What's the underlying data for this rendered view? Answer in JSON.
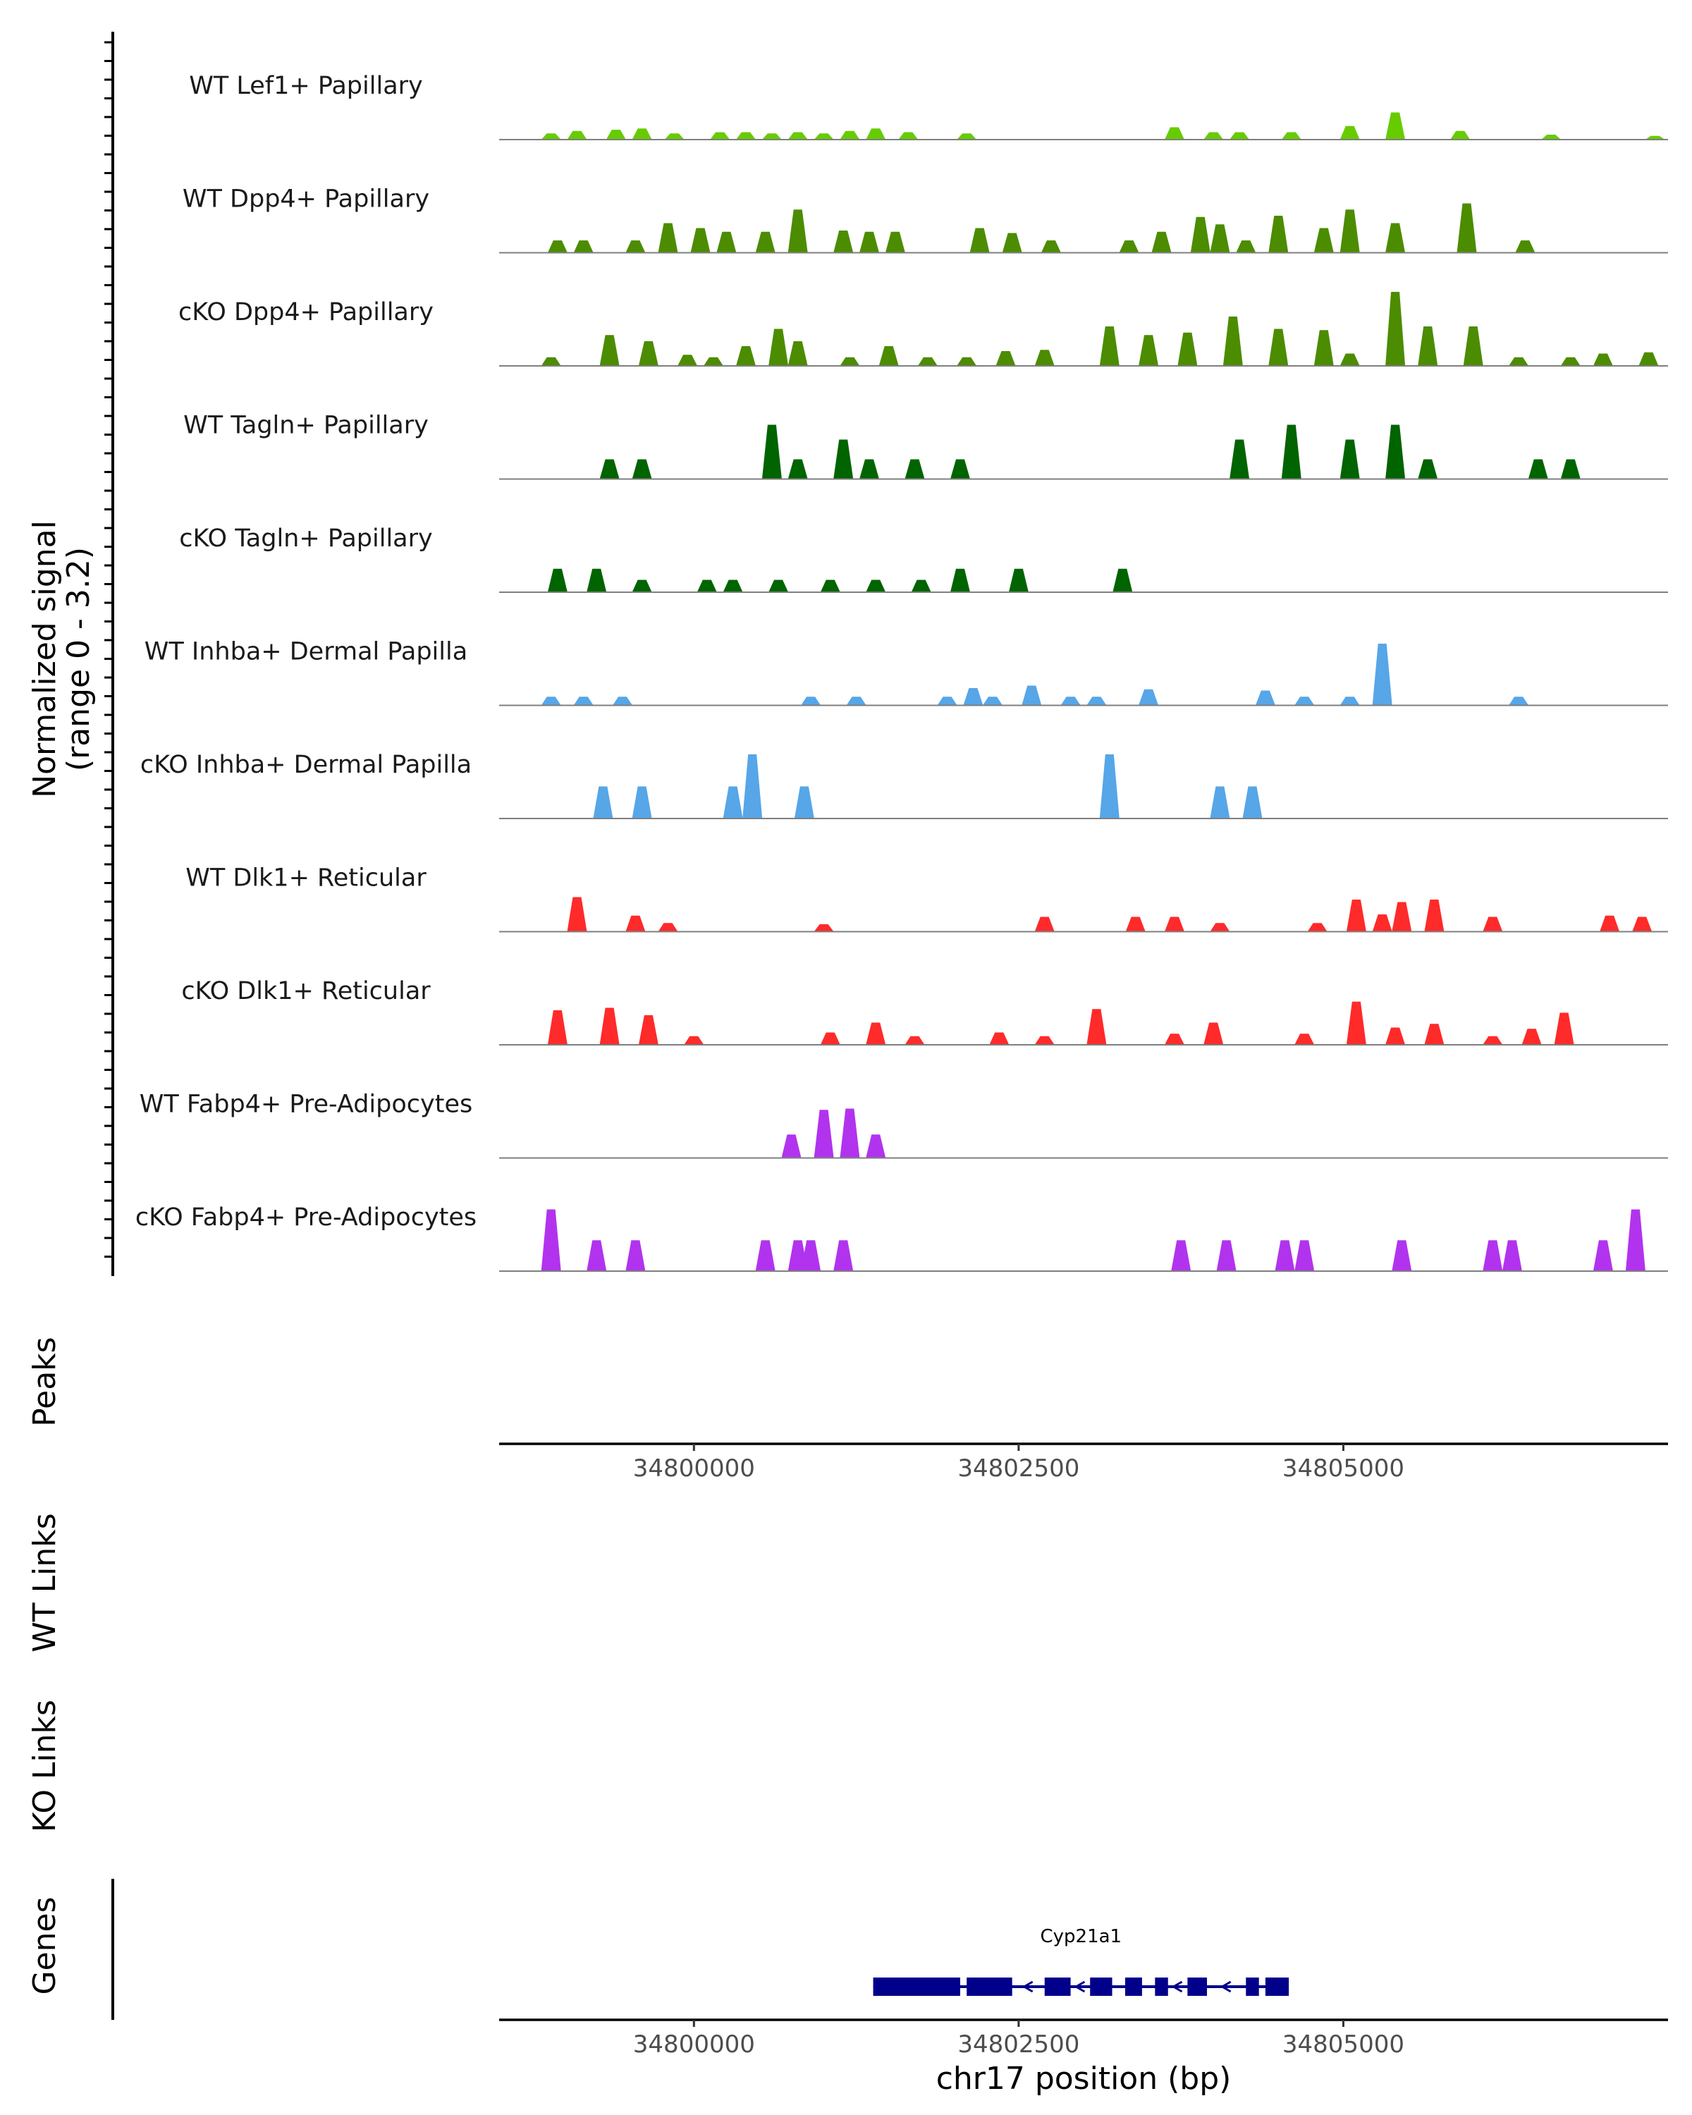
{
  "chart_data": {
    "type": "area",
    "chromosome": "chr17",
    "xlabel": "chr17 position (bp)",
    "xlim": [
      34798500,
      34807500
    ],
    "xticks": [
      34800000,
      34802500,
      34805000
    ],
    "xtick_labels": [
      "34800000",
      "34802500",
      "34805000"
    ],
    "ylabel_line1": "Normalized signal",
    "ylabel_line2": "(range 0 - 3.2)",
    "ylim": [
      0,
      3.2
    ],
    "panel_labels": {
      "peaks": "Peaks",
      "wt_links": "WT Links",
      "ko_links": "KO Links",
      "genes": "Genes"
    },
    "tracks": [
      {
        "label": "WT Lef1+ Papillary",
        "color": "#66cc00",
        "peaks": [
          [
            34798900,
            0.25
          ],
          [
            34799100,
            0.35
          ],
          [
            34799400,
            0.4
          ],
          [
            34799600,
            0.45
          ],
          [
            34799850,
            0.25
          ],
          [
            34800200,
            0.3
          ],
          [
            34800400,
            0.3
          ],
          [
            34800600,
            0.25
          ],
          [
            34800800,
            0.3
          ],
          [
            34801000,
            0.25
          ],
          [
            34801200,
            0.35
          ],
          [
            34801400,
            0.45
          ],
          [
            34801650,
            0.3
          ],
          [
            34802100,
            0.25
          ],
          [
            34803700,
            0.5
          ],
          [
            34804000,
            0.3
          ],
          [
            34804200,
            0.3
          ],
          [
            34804600,
            0.3
          ],
          [
            34805050,
            0.55
          ],
          [
            34805400,
            1.1
          ],
          [
            34805900,
            0.35
          ],
          [
            34806600,
            0.2
          ],
          [
            34807400,
            0.15
          ]
        ]
      },
      {
        "label": "WT Dpp4+ Papillary",
        "color": "#4c8c00",
        "peaks": [
          [
            34798950,
            0.5
          ],
          [
            34799150,
            0.5
          ],
          [
            34799550,
            0.5
          ],
          [
            34799800,
            1.2
          ],
          [
            34800050,
            1.0
          ],
          [
            34800250,
            0.85
          ],
          [
            34800550,
            0.85
          ],
          [
            34800800,
            1.75
          ],
          [
            34801150,
            0.9
          ],
          [
            34801350,
            0.85
          ],
          [
            34801550,
            0.85
          ],
          [
            34802200,
            1.0
          ],
          [
            34802450,
            0.8
          ],
          [
            34802750,
            0.5
          ],
          [
            34803350,
            0.5
          ],
          [
            34803600,
            0.85
          ],
          [
            34803900,
            1.45
          ],
          [
            34804050,
            1.15
          ],
          [
            34804250,
            0.5
          ],
          [
            34804500,
            1.5
          ],
          [
            34804850,
            1.0
          ],
          [
            34805050,
            1.75
          ],
          [
            34805400,
            1.2
          ],
          [
            34805950,
            2.0
          ],
          [
            34806400,
            0.5
          ]
        ]
      },
      {
        "label": "cKO Dpp4+ Papillary",
        "color": "#4c8c00",
        "peaks": [
          [
            34798900,
            0.35
          ],
          [
            34799350,
            1.25
          ],
          [
            34799650,
            1.0
          ],
          [
            34799950,
            0.45
          ],
          [
            34800150,
            0.35
          ],
          [
            34800400,
            0.8
          ],
          [
            34800650,
            1.5
          ],
          [
            34800800,
            1.0
          ],
          [
            34801200,
            0.35
          ],
          [
            34801500,
            0.8
          ],
          [
            34801800,
            0.35
          ],
          [
            34802100,
            0.35
          ],
          [
            34802400,
            0.6
          ],
          [
            34802700,
            0.65
          ],
          [
            34803200,
            1.6
          ],
          [
            34803500,
            1.25
          ],
          [
            34803800,
            1.35
          ],
          [
            34804150,
            2.0
          ],
          [
            34804500,
            1.5
          ],
          [
            34804850,
            1.45
          ],
          [
            34805050,
            0.5
          ],
          [
            34805400,
            3.0
          ],
          [
            34805650,
            1.6
          ],
          [
            34806000,
            1.6
          ],
          [
            34806350,
            0.35
          ],
          [
            34806750,
            0.35
          ],
          [
            34807000,
            0.5
          ],
          [
            34807350,
            0.55
          ]
        ]
      },
      {
        "label": "WT Tagln+ Papillary",
        "color": "#006400",
        "peaks": [
          [
            34799350,
            0.8
          ],
          [
            34799600,
            0.8
          ],
          [
            34800600,
            2.2
          ],
          [
            34800800,
            0.8
          ],
          [
            34801150,
            1.6
          ],
          [
            34801350,
            0.8
          ],
          [
            34801700,
            0.8
          ],
          [
            34802050,
            0.8
          ],
          [
            34804200,
            1.6
          ],
          [
            34804600,
            2.2
          ],
          [
            34805050,
            1.6
          ],
          [
            34805400,
            2.2
          ],
          [
            34805650,
            0.8
          ],
          [
            34806500,
            0.8
          ],
          [
            34806750,
            0.8
          ]
        ]
      },
      {
        "label": "cKO Tagln+ Papillary",
        "color": "#006400",
        "peaks": [
          [
            34798950,
            0.95
          ],
          [
            34799250,
            0.95
          ],
          [
            34799600,
            0.5
          ],
          [
            34800100,
            0.5
          ],
          [
            34800300,
            0.5
          ],
          [
            34800650,
            0.5
          ],
          [
            34801050,
            0.5
          ],
          [
            34801400,
            0.5
          ],
          [
            34801750,
            0.5
          ],
          [
            34802050,
            0.95
          ],
          [
            34802500,
            0.95
          ],
          [
            34803300,
            0.95
          ]
        ]
      },
      {
        "label": "WT Inhba+ Dermal Papilla",
        "color": "#56a6e8",
        "peaks": [
          [
            34798900,
            0.35
          ],
          [
            34799150,
            0.35
          ],
          [
            34799450,
            0.35
          ],
          [
            34800900,
            0.35
          ],
          [
            34801250,
            0.35
          ],
          [
            34801950,
            0.35
          ],
          [
            34802150,
            0.7
          ],
          [
            34802300,
            0.35
          ],
          [
            34802600,
            0.8
          ],
          [
            34802900,
            0.35
          ],
          [
            34803100,
            0.35
          ],
          [
            34803500,
            0.65
          ],
          [
            34804400,
            0.6
          ],
          [
            34804700,
            0.35
          ],
          [
            34805050,
            0.35
          ],
          [
            34805300,
            2.5
          ],
          [
            34806350,
            0.35
          ]
        ]
      },
      {
        "label": "cKO Inhba+ Dermal Papilla",
        "color": "#56a6e8",
        "peaks": [
          [
            34799300,
            1.3
          ],
          [
            34799600,
            1.3
          ],
          [
            34800300,
            1.3
          ],
          [
            34800450,
            2.6
          ],
          [
            34800850,
            1.3
          ],
          [
            34803200,
            2.6
          ],
          [
            34804050,
            1.3
          ],
          [
            34804300,
            1.3
          ]
        ]
      },
      {
        "label": "WT Dlk1+ Reticular",
        "color": "#ff2a2a",
        "peaks": [
          [
            34799100,
            1.4
          ],
          [
            34799550,
            0.65
          ],
          [
            34799800,
            0.35
          ],
          [
            34801000,
            0.3
          ],
          [
            34802700,
            0.6
          ],
          [
            34803400,
            0.6
          ],
          [
            34803700,
            0.6
          ],
          [
            34804050,
            0.35
          ],
          [
            34804800,
            0.35
          ],
          [
            34805100,
            1.3
          ],
          [
            34805300,
            0.7
          ],
          [
            34805450,
            1.2
          ],
          [
            34805700,
            1.3
          ],
          [
            34806150,
            0.6
          ],
          [
            34807050,
            0.65
          ],
          [
            34807300,
            0.6
          ]
        ]
      },
      {
        "label": "cKO Dlk1+ Reticular",
        "color": "#ff2a2a",
        "peaks": [
          [
            34798950,
            1.4
          ],
          [
            34799350,
            1.5
          ],
          [
            34799650,
            1.2
          ],
          [
            34800000,
            0.35
          ],
          [
            34801050,
            0.5
          ],
          [
            34801400,
            0.9
          ],
          [
            34801700,
            0.35
          ],
          [
            34802350,
            0.5
          ],
          [
            34802700,
            0.35
          ],
          [
            34803100,
            1.45
          ],
          [
            34803700,
            0.45
          ],
          [
            34804000,
            0.9
          ],
          [
            34804700,
            0.45
          ],
          [
            34805100,
            1.75
          ],
          [
            34805400,
            0.7
          ],
          [
            34805700,
            0.85
          ],
          [
            34806150,
            0.35
          ],
          [
            34806450,
            0.65
          ],
          [
            34806700,
            1.3
          ]
        ]
      },
      {
        "label": "WT Fabp4+ Pre-Adipocytes",
        "color": "#b233ee",
        "peaks": [
          [
            34800750,
            0.95
          ],
          [
            34801000,
            1.95
          ],
          [
            34801200,
            2.0
          ],
          [
            34801400,
            0.95
          ]
        ]
      },
      {
        "label": "cKO Fabp4+ Pre-Adipocytes",
        "color": "#b233ee",
        "peaks": [
          [
            34798900,
            2.5
          ],
          [
            34799250,
            1.25
          ],
          [
            34799550,
            1.25
          ],
          [
            34800550,
            1.25
          ],
          [
            34800800,
            1.25
          ],
          [
            34800900,
            1.25
          ],
          [
            34801150,
            1.25
          ],
          [
            34803750,
            1.25
          ],
          [
            34804100,
            1.25
          ],
          [
            34804550,
            1.25
          ],
          [
            34804700,
            1.25
          ],
          [
            34805450,
            1.25
          ],
          [
            34806150,
            1.25
          ],
          [
            34806300,
            1.25
          ],
          [
            34807000,
            1.25
          ],
          [
            34807250,
            2.5
          ]
        ]
      }
    ],
    "gene": {
      "name": "Cyp21a1",
      "strand": "-",
      "start": 34801380,
      "end": 34804580,
      "exons": [
        [
          34801380,
          34802050
        ],
        [
          34802100,
          34802450
        ],
        [
          34802700,
          34802900
        ],
        [
          34803050,
          34803220
        ],
        [
          34803320,
          34803450
        ],
        [
          34803550,
          34803650
        ],
        [
          34803800,
          34803950
        ],
        [
          34804250,
          34804350
        ],
        [
          34804400,
          34804580
        ]
      ]
    }
  }
}
